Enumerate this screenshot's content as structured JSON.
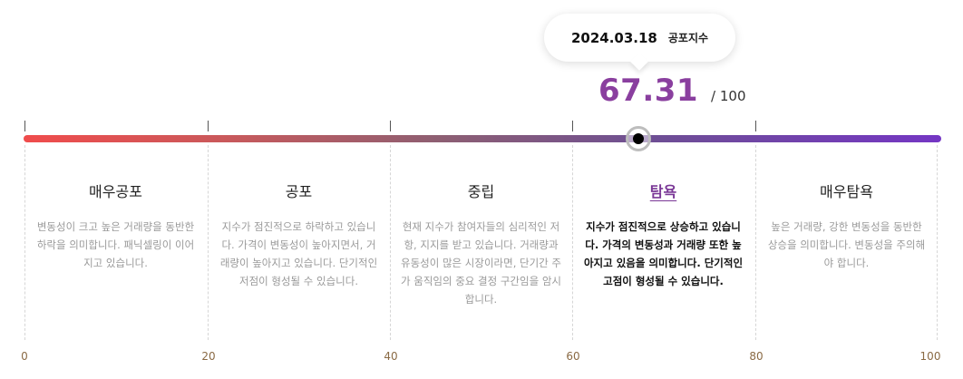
{
  "tooltip": {
    "date": "2024.03.18",
    "label": "공포지수"
  },
  "score": {
    "value": "67.31",
    "max": "/ 100"
  },
  "gauge": {
    "value": 67.31,
    "min": 0,
    "max": 100,
    "gradient_start": "#f04c4c",
    "gradient_end": "#7436c4",
    "accent": "#8a3f9f"
  },
  "zones": [
    {
      "title": "매우공포",
      "desc": "변동성이 크고 높은 거래량을 동반한 하락을 의미합니다. 패닉셀링이 이어지고 있습니다.",
      "active": false
    },
    {
      "title": "공포",
      "desc": "지수가 점진적으로 하락하고 있습니다. 가격이 변동성이 높아지면서, 거래량이 높아지고 있습니다. 단기적인 저점이 형성될 수 있습니다.",
      "active": false
    },
    {
      "title": "중립",
      "desc": "현재 지수가 참여자들의 심리적인 저항, 지지를 받고 있습니다. 거래량과 유동성이 많은 시장이라면, 단기간 주가 움직임의 중요 결정 구간임을 암시합니다.",
      "active": false
    },
    {
      "title": "탐욕",
      "desc": "지수가 점진적으로 상승하고 있습니다. 가격의 변동성과 거래량 또한 높아지고 있음을 의미합니다. 단기적인 고점이 형성될 수 있습니다.",
      "active": true
    },
    {
      "title": "매우탐욕",
      "desc": "높은 거래량, 강한 변동성을 동반한 상승을 의미합니다. 변동성을 주의해야 합니다.",
      "active": false
    }
  ],
  "axis": [
    "0",
    "20",
    "40",
    "60",
    "80",
    "100"
  ]
}
